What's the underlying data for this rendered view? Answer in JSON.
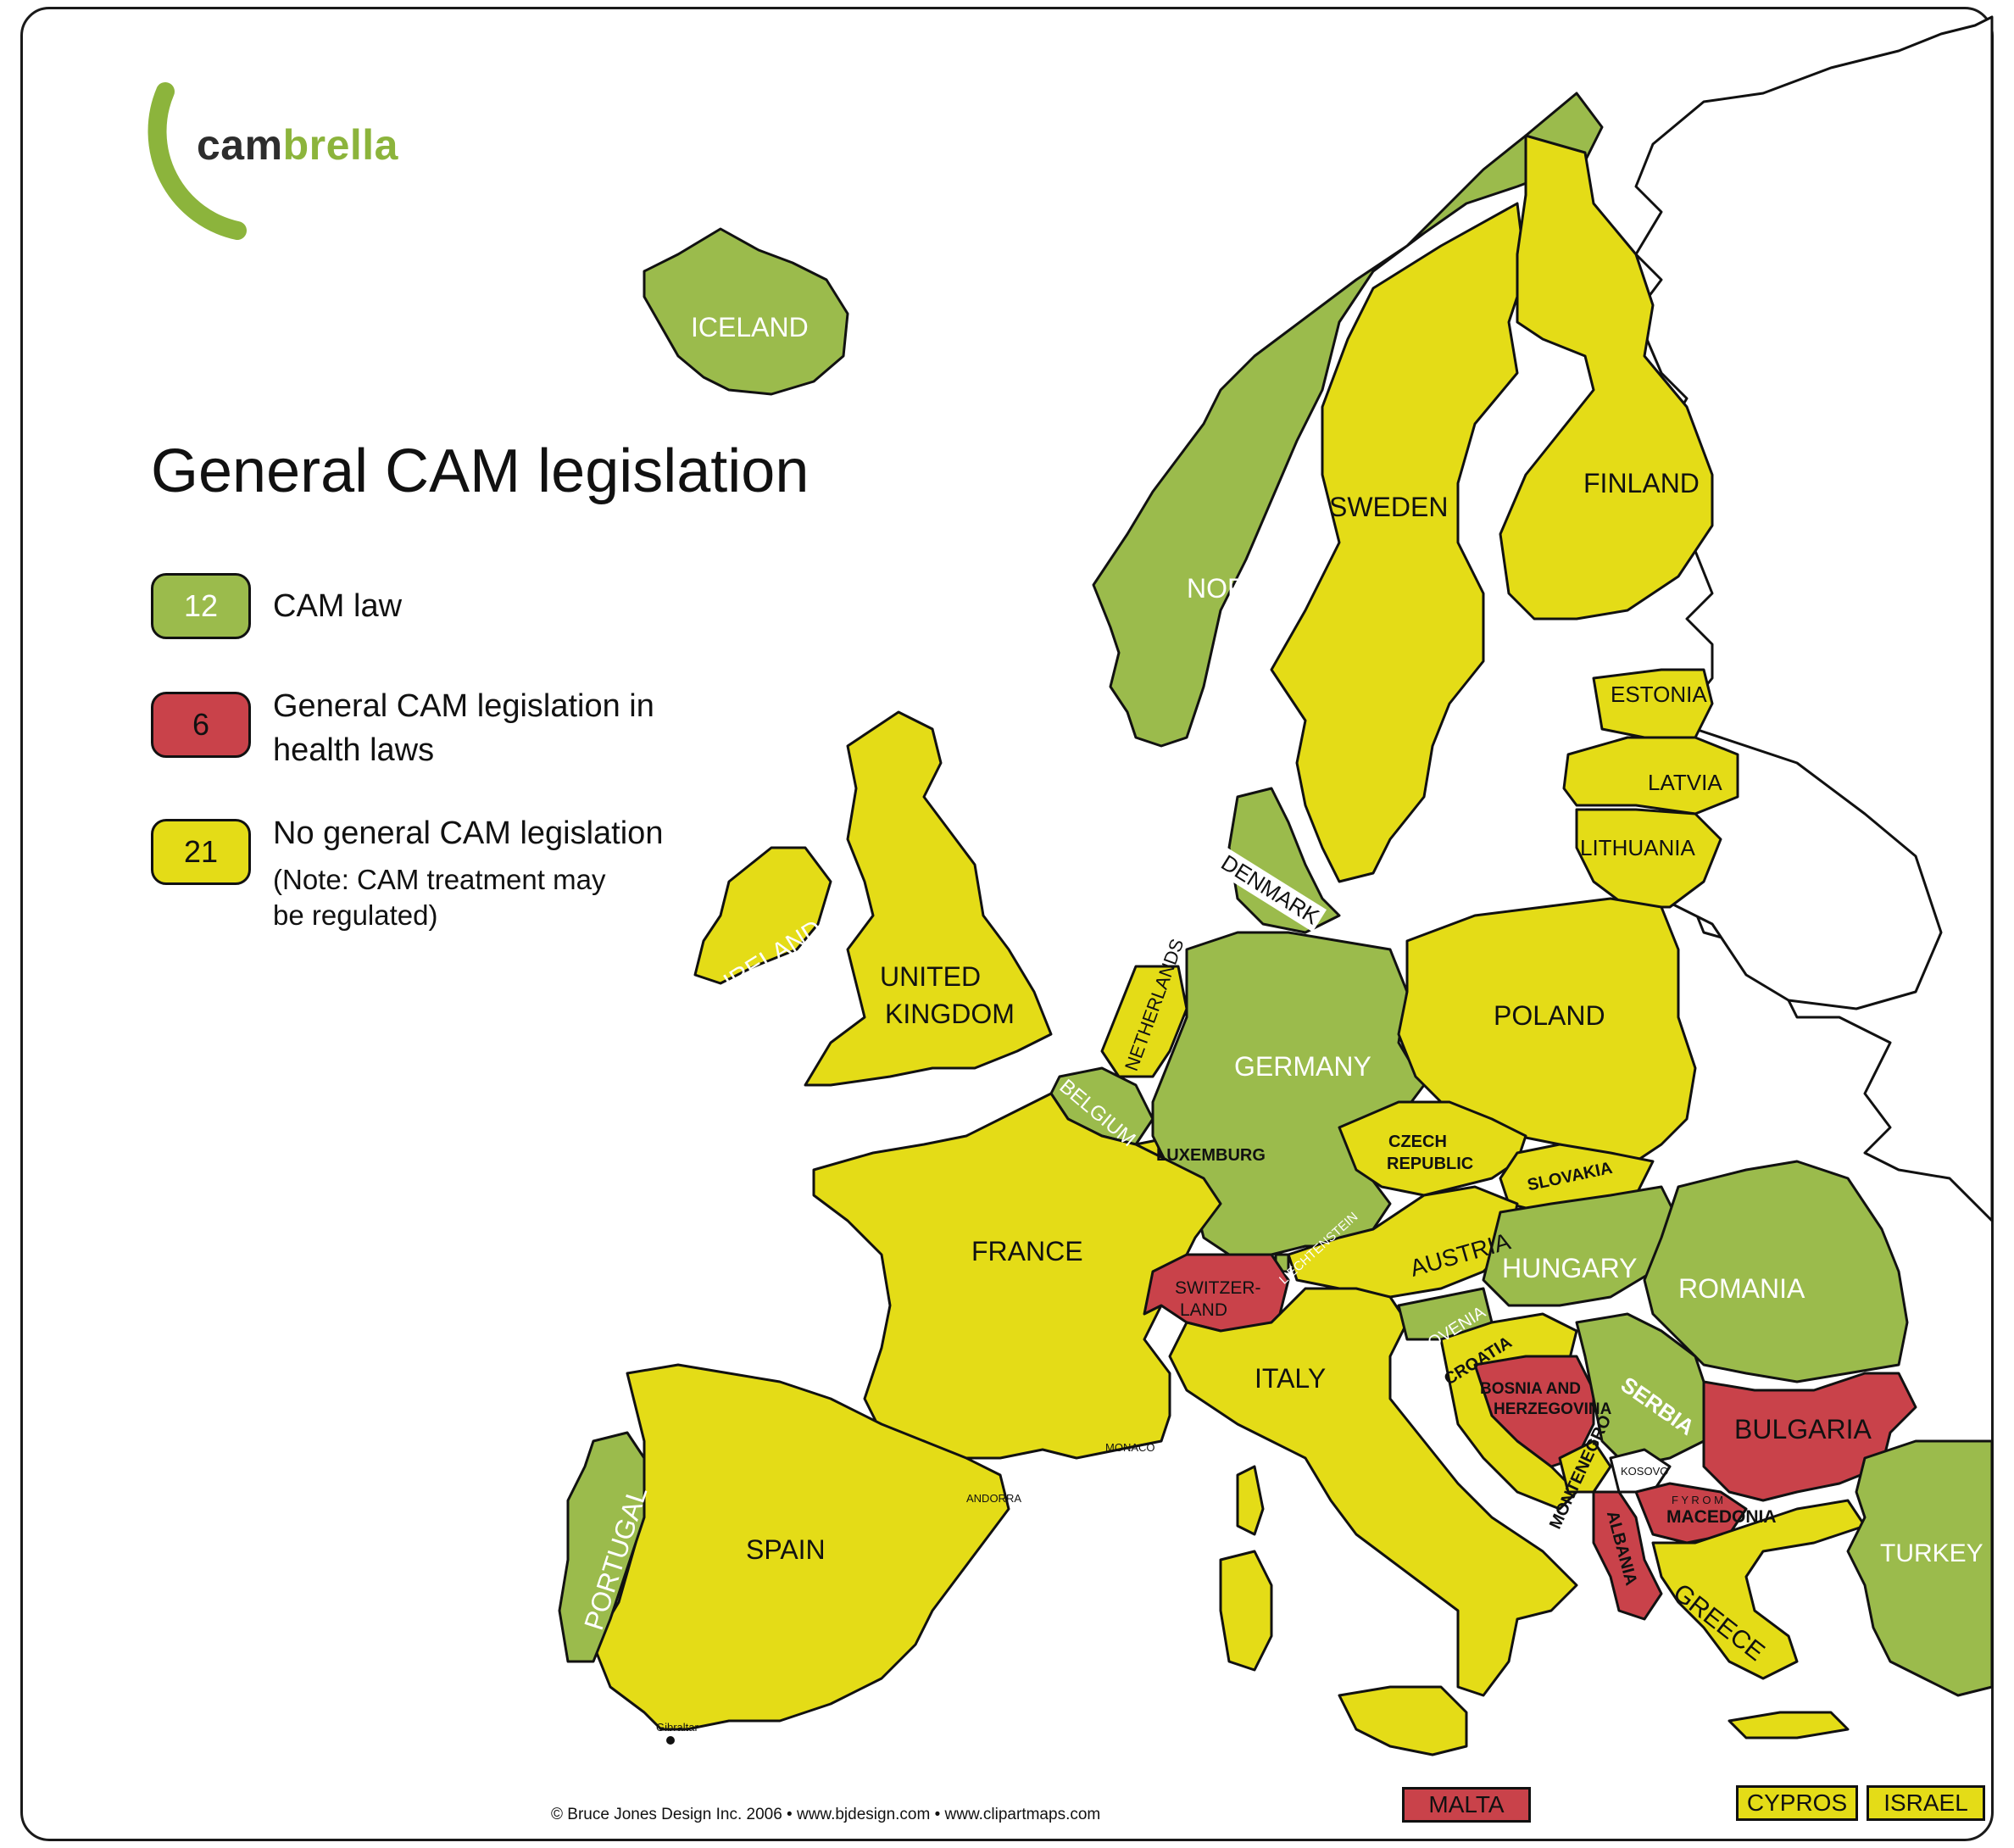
{
  "logo": {
    "prefix": "cam",
    "suffix": "brella"
  },
  "title": "General CAM legislation",
  "legend": [
    {
      "count": "12",
      "label": "CAM law",
      "color": "#9bbb4c"
    },
    {
      "count": "6",
      "label_line1": "General CAM legislation in",
      "label_line2": "health laws",
      "color": "#c9424a"
    },
    {
      "count": "21",
      "label": "No general CAM legislation",
      "note_line1": "(Note: CAM treatment may",
      "note_line2": "be regulated)",
      "color": "#e4dc17"
    }
  ],
  "countries": {
    "iceland": "ICELAND",
    "norway": "NORWAY",
    "sweden": "SWEDEN",
    "finland": "FINLAND",
    "estonia": "ESTONIA",
    "latvia": "LATVIA",
    "lithuania": "LITHUANIA",
    "denmark": "DENMARK",
    "ireland": "IRELAND",
    "uk_line1": "UNITED",
    "uk_line2": "KINGDOM",
    "netherlands": "NETHERLANDS",
    "belgium": "BELGIUM",
    "luxemburg": "LUXEMBURG",
    "germany": "GERMANY",
    "poland": "POLAND",
    "czech_line1": "CZECH",
    "czech_line2": "REPUBLIC",
    "slovakia": "SLOVAKIA",
    "liechtenstein": "LIECHTENSTEIN",
    "austria": "AUSTRIA",
    "hungary": "HUNGARY",
    "romania": "ROMANIA",
    "france": "FRANCE",
    "switzerland_line1": "SWITZER-",
    "switzerland_line2": "LAND",
    "slovenia": "SLOVENIA",
    "croatia": "CROATIA",
    "bosnia_line1": "BOSNIA AND",
    "bosnia_line2": "HERZEGOVINA",
    "serbia": "SERBIA",
    "kosovo": "KOSOVO",
    "montenegro": "MONTENEGRO",
    "albania": "ALBANIA",
    "fyrom": "F Y R O M",
    "macedonia": "MACEDONIA",
    "bulgaria": "BULGARIA",
    "greece": "GREECE",
    "turkey": "TURKEY",
    "italy": "ITALY",
    "monaco": "MONACO",
    "andorra": "ANDORRA",
    "spain": "SPAIN",
    "portugal": "PORTUGAL",
    "gibraltar": "Gibraltar"
  },
  "insets": {
    "malta": "MALTA",
    "cypros": "CYPROS",
    "israel": "ISRAEL"
  },
  "copyright": "© Bruce Jones Design Inc. 2006 • www.bjdesign.com • www.clipartmaps.com"
}
